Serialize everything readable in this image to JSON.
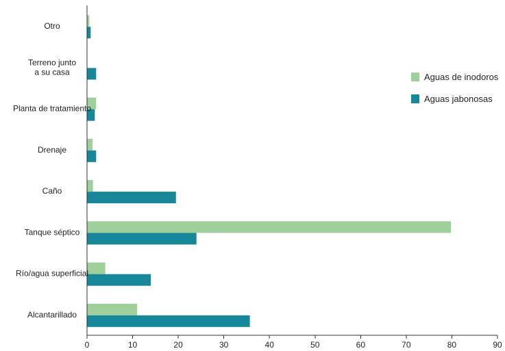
{
  "chart_data": {
    "type": "bar",
    "orientation": "horizontal",
    "categories": [
      "Otro",
      "Terreno junto a su casa",
      "Planta de tratamiento",
      "Drenaje",
      "Caño",
      "Tanque séptico",
      "Río/agua superficial",
      "Alcantarillado"
    ],
    "category_lines": [
      [
        "Otro"
      ],
      [
        "Terreno junto",
        "a su casa"
      ],
      [
        "Planta de tratamiento"
      ],
      [
        "Drenaje"
      ],
      [
        "Caño"
      ],
      [
        "Tanque séptico"
      ],
      [
        "Río/agua superficial"
      ],
      [
        "Alcantarillado"
      ]
    ],
    "series": [
      {
        "name": "Aguas de inodoros",
        "color": "#9fd09b",
        "values": [
          0.5,
          0.0,
          2.0,
          1.2,
          1.3,
          79.8,
          4.0,
          11.0
        ]
      },
      {
        "name": "Aguas jabonosas",
        "color": "#17879a",
        "values": [
          0.8,
          2.0,
          1.7,
          2.0,
          19.5,
          24.0,
          14.0,
          35.7
        ]
      }
    ],
    "xlim": [
      0,
      90
    ],
    "xticks": [
      0,
      10,
      20,
      30,
      40,
      50,
      60,
      70,
      80,
      90
    ],
    "title": "",
    "xlabel": "",
    "ylabel": "",
    "legend": "right",
    "grid": false
  }
}
